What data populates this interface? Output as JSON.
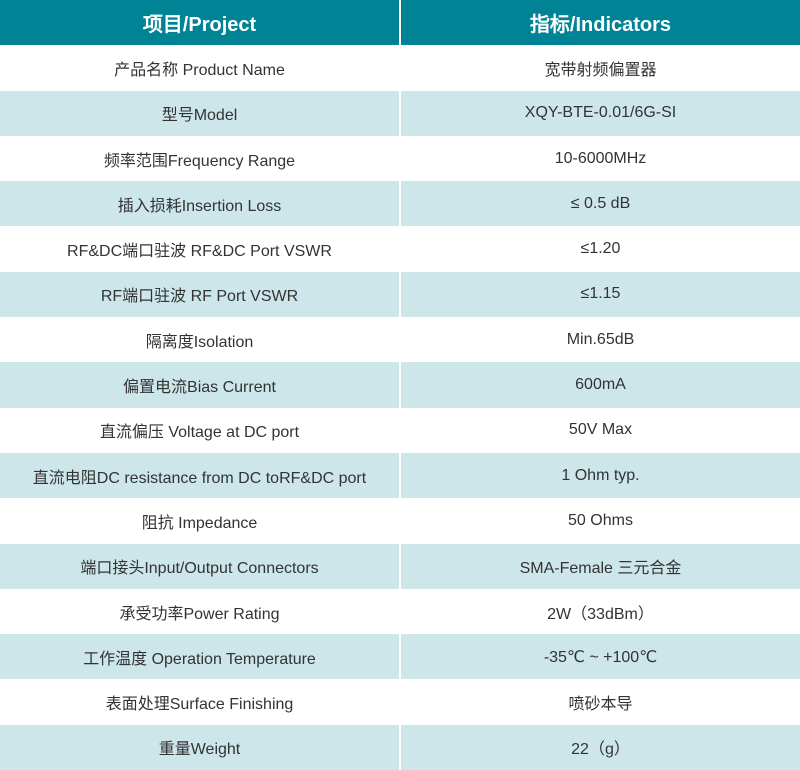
{
  "header": {
    "project": "项目/Project",
    "indicators": "指标/Indicators"
  },
  "colors": {
    "header_bg": "#008394",
    "alt_row_bg": "#cce6ea"
  },
  "rows": [
    {
      "project": "产品名称 Product Name",
      "indicator": "宽带射频偏置器"
    },
    {
      "project": "型号Model",
      "indicator": "XQY-BTE-0.01/6G-SI"
    },
    {
      "project": "频率范围Frequency Range",
      "indicator": "10-6000MHz"
    },
    {
      "project": "插入损耗Insertion Loss",
      "indicator": "≤ 0.5 dB"
    },
    {
      "project": "RF&DC端口驻波 RF&DC Port VSWR",
      "indicator": "≤1.20"
    },
    {
      "project": "RF端口驻波 RF Port VSWR",
      "indicator": "≤1.15"
    },
    {
      "project": "隔离度Isolation",
      "indicator": "Min.65dB"
    },
    {
      "project": "偏置电流Bias Current",
      "indicator": "600mA"
    },
    {
      "project": "直流偏压 Voltage at DC port",
      "indicator": "50V Max"
    },
    {
      "project": "直流电阻DC resistance from DC toRF&DC port",
      "indicator": "1 Ohm typ."
    },
    {
      "project": "阻抗 Impedance",
      "indicator": "50 Ohms"
    },
    {
      "project": "端口接头Input/Output Connectors",
      "indicator": "SMA-Female 三元合金"
    },
    {
      "project": "承受功率Power Rating",
      "indicator": "2W（33dBm）"
    },
    {
      "project": "工作温度 Operation Temperature",
      "indicator": "-35℃ ~ +100℃"
    },
    {
      "project": "表面处理Surface Finishing",
      "indicator": "喷砂本导"
    },
    {
      "project": "重量Weight",
      "indicator": "22（g）"
    }
  ]
}
